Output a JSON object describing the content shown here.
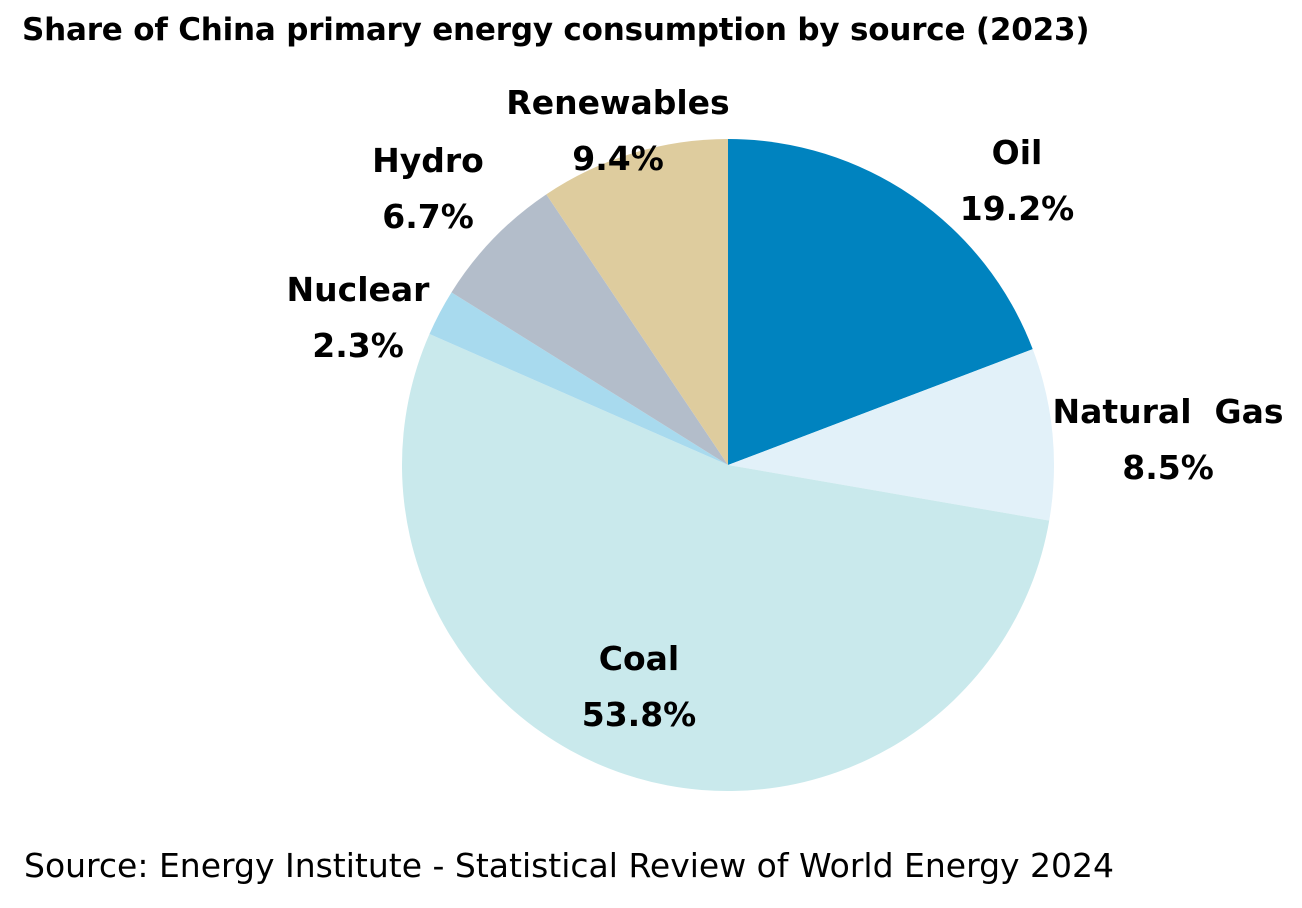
{
  "chart_data": {
    "type": "pie",
    "title": "Share of China primary energy consumption by source (2023)",
    "source": "Source: Energy Institute - Statistical Review of World Energy 2024",
    "unit": "%",
    "slices": [
      {
        "name": "Oil",
        "value": 19.2,
        "value_label": "19.2%",
        "color": "#0083BF"
      },
      {
        "name": "Natural  Gas",
        "value": 8.5,
        "value_label": "8.5%",
        "color": "#E2F1F9"
      },
      {
        "name": "Coal",
        "value": 53.8,
        "value_label": "53.8%",
        "color": "#C9E9EC"
      },
      {
        "name": "Nuclear",
        "value": 2.3,
        "value_label": "2.3%",
        "color": "#A8DAEE"
      },
      {
        "name": "Hydro",
        "value": 6.7,
        "value_label": "6.7%",
        "color": "#B3BDCA"
      },
      {
        "name": "Renewables",
        "value": 9.4,
        "value_label": "9.4%",
        "color": "#DECC9E"
      }
    ],
    "start_angle": "12 o'clock",
    "direction": "clockwise",
    "legend": "none"
  }
}
